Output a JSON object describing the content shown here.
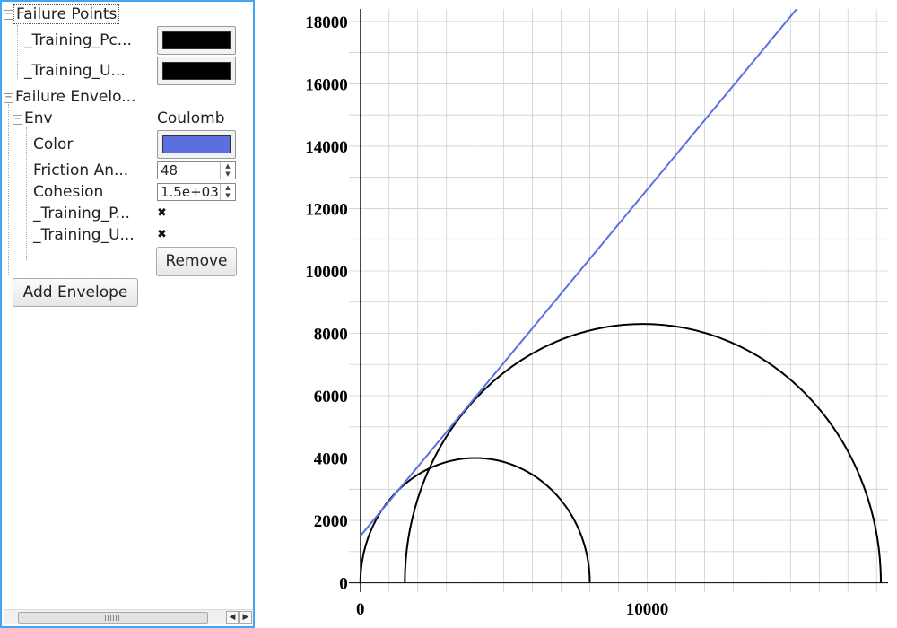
{
  "panel": {
    "failure_points": {
      "label": "Failure Points",
      "items": [
        {
          "label": "_Training_Pc...",
          "color": "#000000"
        },
        {
          "label": "_Training_U...",
          "color": "#000000"
        }
      ]
    },
    "failure_envelopes": {
      "label": "Failure Envelo...",
      "env": {
        "label": "Env",
        "type": "Coulomb",
        "color_label": "Color",
        "color": "#5b6fe0",
        "friction_label": "Friction An...",
        "friction_value": "48",
        "cohesion_label": "Cohesion",
        "cohesion_value": "1.5e+03",
        "training_p_label": "_Training_P...",
        "training_u_label": "_Training_U...",
        "remove_label": "Remove"
      },
      "add_label": "Add Envelope"
    }
  },
  "chart_data": {
    "type": "line",
    "title": "",
    "xlabel": "",
    "ylabel": "",
    "xlim": [
      -400,
      18400
    ],
    "ylim": [
      -300,
      18400
    ],
    "x_ticks": [
      0,
      10000
    ],
    "y_ticks": [
      0,
      2000,
      4000,
      6000,
      8000,
      10000,
      12000,
      14000,
      16000,
      18000
    ],
    "grid": true,
    "mohr_circles": [
      {
        "center": 4000,
        "radius": 4000,
        "color": "#000000"
      },
      {
        "center": 9850,
        "radius": 8300,
        "color": "#000000"
      }
    ],
    "envelope": {
      "type": "Coulomb",
      "friction_angle_deg": 48,
      "cohesion": 1500,
      "color": "#5b6fe0"
    }
  }
}
